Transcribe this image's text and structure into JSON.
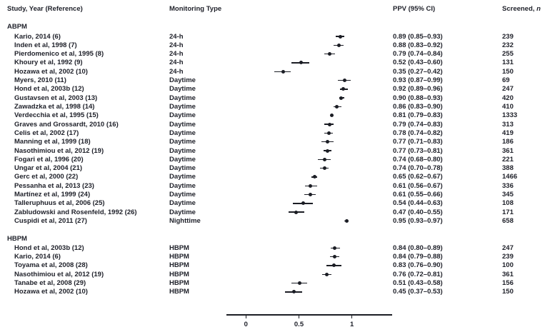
{
  "headers": {
    "study": "Study, Year (Reference)",
    "monitoring": "Monitoring Type",
    "ppv": "PPV (95% CI)",
    "screened_prefix": "Screened, ",
    "screened_n": "n"
  },
  "colors": {
    "text": "#20222b",
    "marker": "#1b1d24"
  },
  "chart_data": {
    "type": "scatter",
    "subtype": "forest-plot",
    "title": "",
    "xlabel": "",
    "legend": "none",
    "axis": {
      "ticks": [
        0,
        0.5,
        1
      ],
      "tick_labels": [
        "0",
        "0.5",
        "1"
      ],
      "xlim_drawn": [
        -0.18,
        1.38
      ]
    },
    "groups": [
      {
        "label": "ABPM",
        "rows": [
          {
            "study": "Kario, 2014 (6)",
            "monitoring": "24-h",
            "ppv": 0.89,
            "lo": 0.85,
            "hi": 0.93,
            "n": "239"
          },
          {
            "study": "Inden et al, 1998 (7)",
            "monitoring": "24-h",
            "ppv": 0.88,
            "lo": 0.83,
            "hi": 0.92,
            "n": "232"
          },
          {
            "study": "Pierdomenico et al, 1995 (8)",
            "monitoring": "24-h",
            "ppv": 0.79,
            "lo": 0.74,
            "hi": 0.84,
            "n": "255"
          },
          {
            "study": "Khoury et al, 1992 (9)",
            "monitoring": "24-h",
            "ppv": 0.52,
            "lo": 0.43,
            "hi": 0.6,
            "n": "131"
          },
          {
            "study": "Hozawa et al, 2002 (10)",
            "monitoring": "24-h",
            "ppv": 0.35,
            "lo": 0.27,
            "hi": 0.42,
            "n": "150"
          },
          {
            "study": "Myers, 2010 (11)",
            "monitoring": "Daytime",
            "ppv": 0.93,
            "lo": 0.87,
            "hi": 0.99,
            "n": "69"
          },
          {
            "study": "Hond et al, 2003b (12)",
            "monitoring": "Daytime",
            "ppv": 0.92,
            "lo": 0.89,
            "hi": 0.96,
            "n": "247"
          },
          {
            "study": "Gustavsen et al, 2003 (13)",
            "monitoring": "Daytime",
            "ppv": 0.9,
            "lo": 0.88,
            "hi": 0.93,
            "n": "420"
          },
          {
            "study": "Zawadzka et al, 1998 (14)",
            "monitoring": "Daytime",
            "ppv": 0.86,
            "lo": 0.83,
            "hi": 0.9,
            "n": "410"
          },
          {
            "study": "Verdecchia et al, 1995 (15)",
            "monitoring": "Daytime",
            "ppv": 0.81,
            "lo": 0.79,
            "hi": 0.83,
            "n": "1333"
          },
          {
            "study": "Graves and Grossardt, 2010 (16)",
            "monitoring": "Daytime",
            "ppv": 0.79,
            "lo": 0.74,
            "hi": 0.83,
            "n": "313"
          },
          {
            "study": "Celis et al, 2002 (17)",
            "monitoring": "Daytime",
            "ppv": 0.78,
            "lo": 0.74,
            "hi": 0.82,
            "n": "419"
          },
          {
            "study": "Manning et al, 1999 (18)",
            "monitoring": "Daytime",
            "ppv": 0.77,
            "lo": 0.71,
            "hi": 0.83,
            "n": "186"
          },
          {
            "study": "Nasothimiou et al, 2012 (19)",
            "monitoring": "Daytime",
            "ppv": 0.77,
            "lo": 0.73,
            "hi": 0.81,
            "n": "361"
          },
          {
            "study": "Fogari et al, 1996 (20)",
            "monitoring": "Daytime",
            "ppv": 0.74,
            "lo": 0.68,
            "hi": 0.8,
            "n": "221"
          },
          {
            "study": "Ungar et al, 2004 (21)",
            "monitoring": "Daytime",
            "ppv": 0.74,
            "lo": 0.7,
            "hi": 0.78,
            "n": "388"
          },
          {
            "study": "Gerc et al, 2000 (22)",
            "monitoring": "Daytime",
            "ppv": 0.65,
            "lo": 0.62,
            "hi": 0.67,
            "n": "1466"
          },
          {
            "study": "Pessanha et al, 2013 (23)",
            "monitoring": "Daytime",
            "ppv": 0.61,
            "lo": 0.56,
            "hi": 0.67,
            "n": "336"
          },
          {
            "study": "Martínez et al, 1999 (24)",
            "monitoring": "Daytime",
            "ppv": 0.61,
            "lo": 0.55,
            "hi": 0.66,
            "n": "345"
          },
          {
            "study": "Talleruphuus et al, 2006 (25)",
            "monitoring": "Daytime",
            "ppv": 0.54,
            "lo": 0.44,
            "hi": 0.63,
            "n": "108"
          },
          {
            "study": "Zabludowski and Rosenfeld, 1992 (26)",
            "monitoring": "Daytime",
            "ppv": 0.47,
            "lo": 0.4,
            "hi": 0.55,
            "n": "171"
          },
          {
            "study": "Cuspidi et al, 2011 (27)",
            "monitoring": "Nighttime",
            "ppv": 0.95,
            "lo": 0.93,
            "hi": 0.97,
            "n": "658"
          }
        ]
      },
      {
        "label": "HBPM",
        "rows": [
          {
            "study": "Hond et al, 2003b (12)",
            "monitoring": "HBPM",
            "ppv": 0.84,
            "lo": 0.8,
            "hi": 0.89,
            "n": "247"
          },
          {
            "study": "Kario, 2014 (6)",
            "monitoring": "HBPM",
            "ppv": 0.84,
            "lo": 0.79,
            "hi": 0.88,
            "n": "239"
          },
          {
            "study": "Toyama et al, 2008 (28)",
            "monitoring": "HBPM",
            "ppv": 0.83,
            "lo": 0.76,
            "hi": 0.9,
            "n": "100"
          },
          {
            "study": "Nasothimiou et al, 2012 (19)",
            "monitoring": "HBPM",
            "ppv": 0.76,
            "lo": 0.72,
            "hi": 0.81,
            "n": "361"
          },
          {
            "study": "Tanabe et al, 2008 (29)",
            "monitoring": "HBPM",
            "ppv": 0.51,
            "lo": 0.43,
            "hi": 0.58,
            "n": "156"
          },
          {
            "study": "Hozawa et al, 2002 (10)",
            "monitoring": "HBPM",
            "ppv": 0.45,
            "lo": 0.37,
            "hi": 0.53,
            "n": "150"
          }
        ]
      }
    ]
  }
}
